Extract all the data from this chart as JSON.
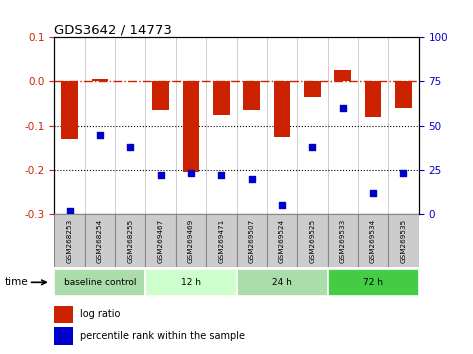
{
  "title": "GDS3642 / 14773",
  "samples": [
    "GSM268253",
    "GSM268254",
    "GSM268255",
    "GSM269467",
    "GSM269469",
    "GSM269471",
    "GSM269507",
    "GSM269524",
    "GSM269525",
    "GSM269533",
    "GSM269534",
    "GSM269535"
  ],
  "log_ratio": [
    -0.13,
    0.005,
    0.002,
    -0.065,
    -0.205,
    -0.075,
    -0.065,
    -0.125,
    -0.035,
    0.025,
    -0.08,
    -0.06
  ],
  "percentile_rank": [
    2,
    45,
    38,
    22,
    23,
    22,
    20,
    5,
    38,
    60,
    12,
    23
  ],
  "ylim_left": [
    -0.3,
    0.1
  ],
  "ylim_right": [
    0,
    100
  ],
  "yticks_left": [
    -0.3,
    -0.2,
    -0.1,
    0.0,
    0.1
  ],
  "yticks_right": [
    0,
    25,
    50,
    75,
    100
  ],
  "bar_color": "#cc2200",
  "dot_color": "#0000cc",
  "zero_line_color": "#cc2200",
  "grid_line_color": "#000000",
  "groups": [
    {
      "label": "baseline control",
      "start": 0,
      "end": 3,
      "color": "#aaddaa"
    },
    {
      "label": "12 h",
      "start": 3,
      "end": 6,
      "color": "#ccffcc"
    },
    {
      "label": "24 h",
      "start": 6,
      "end": 9,
      "color": "#aaddaa"
    },
    {
      "label": "72 h",
      "start": 9,
      "end": 12,
      "color": "#44cc44"
    }
  ],
  "time_label": "time",
  "legend_log_ratio": "log ratio",
  "legend_percentile": "percentile rank within the sample",
  "bg_color": "#ffffff",
  "tick_label_color_left": "#cc2200",
  "tick_label_color_right": "#0000cc",
  "sample_box_color": "#cccccc",
  "sample_box_edge": "#888888"
}
